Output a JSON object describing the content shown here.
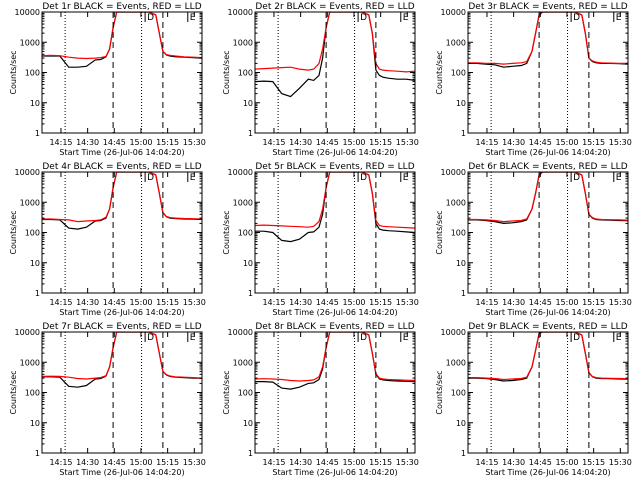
{
  "figure": {
    "xtick_labels": [
      "14:15",
      "14:30",
      "14:45",
      "15:00",
      "15:15",
      "15:30"
    ],
    "xlabel": "Start Time (26-Jul-06 14:04:20)",
    "ylabel": "Counts/sec",
    "ytick_labels": [
      "1",
      "10",
      "100",
      "1000",
      "10000"
    ],
    "marker_labels": [
      "D",
      "E"
    ],
    "colors": {
      "events": "#000000",
      "lld": "#ff0000"
    }
  },
  "chart_data": [
    {
      "type": "line",
      "title": "Det 1r  BLACK = Events, RED = LLD",
      "xlabel": "Start Time (26-Jul-06 14:04:20)",
      "ylabel": "Counts/sec",
      "ylim": [
        1,
        10000
      ],
      "yscale": "log",
      "x_unit": "minutes after 14:04:20",
      "x": [
        0,
        5,
        10,
        15,
        20,
        25,
        30,
        33,
        36,
        38,
        40,
        42,
        44,
        45,
        48,
        51,
        54,
        57,
        60,
        62,
        64,
        66,
        68,
        70,
        72,
        75,
        80,
        85,
        90
      ],
      "series": [
        {
          "name": "Events",
          "values": [
            350,
            350,
            350,
            150,
            150,
            160,
            260,
            270,
            330,
            600,
            3000,
            10000,
            10000,
            10000,
            10000,
            10000,
            10000,
            10000,
            10000,
            9000,
            8000,
            2000,
            500,
            380,
            350,
            330,
            320,
            310,
            300
          ]
        },
        {
          "name": "LLD",
          "values": [
            360,
            370,
            360,
            320,
            300,
            290,
            300,
            310,
            340,
            600,
            3000,
            10000,
            10000,
            10000,
            10000,
            10000,
            10000,
            10000,
            10000,
            9000,
            8000,
            2000,
            500,
            390,
            370,
            350,
            330,
            320,
            310
          ]
        }
      ]
    },
    {
      "type": "line",
      "title": "Det 2r  BLACK = Events, RED = LLD",
      "xlabel": "Start Time (26-Jul-06 14:04:20)",
      "ylabel": "Counts/sec",
      "ylim": [
        1,
        10000
      ],
      "yscale": "log",
      "x": [
        0,
        5,
        10,
        15,
        20,
        25,
        30,
        33,
        36,
        38,
        40,
        42,
        44,
        45,
        48,
        51,
        54,
        57,
        60,
        62,
        64,
        66,
        68,
        70,
        72,
        75,
        80,
        85,
        90
      ],
      "series": [
        {
          "name": "Events",
          "values": [
            50,
            52,
            50,
            20,
            16,
            30,
            60,
            55,
            80,
            300,
            3000,
            10000,
            10000,
            10000,
            10000,
            10000,
            10000,
            10000,
            10000,
            9000,
            8000,
            2000,
            120,
            80,
            70,
            65,
            60,
            60,
            55
          ]
        },
        {
          "name": "LLD",
          "values": [
            130,
            135,
            140,
            145,
            150,
            130,
            120,
            130,
            200,
            600,
            3000,
            10000,
            10000,
            10000,
            10000,
            10000,
            10000,
            10000,
            10000,
            9000,
            8000,
            2000,
            200,
            130,
            120,
            115,
            110,
            105,
            110
          ]
        }
      ]
    },
    {
      "type": "line",
      "title": "Det 3r  BLACK = Events, RED = LLD",
      "xlabel": "Start Time (26-Jul-06 14:04:20)",
      "ylabel": "Counts/sec",
      "ylim": [
        1,
        10000
      ],
      "yscale": "log",
      "x": [
        0,
        5,
        10,
        15,
        20,
        25,
        30,
        33,
        36,
        38,
        40,
        42,
        44,
        45,
        48,
        51,
        54,
        57,
        60,
        62,
        64,
        66,
        68,
        70,
        72,
        75,
        80,
        85,
        90
      ],
      "series": [
        {
          "name": "Events",
          "values": [
            200,
            200,
            190,
            180,
            150,
            160,
            170,
            200,
            500,
            2000,
            8000,
            10000,
            10000,
            10000,
            10000,
            10000,
            10000,
            10000,
            10000,
            9000,
            8000,
            2000,
            300,
            230,
            210,
            200,
            200,
            195,
            190
          ]
        },
        {
          "name": "LLD",
          "values": [
            210,
            210,
            200,
            200,
            190,
            200,
            210,
            230,
            500,
            2000,
            8000,
            10000,
            10000,
            10000,
            10000,
            10000,
            10000,
            10000,
            10000,
            9000,
            8000,
            2000,
            300,
            240,
            220,
            210,
            205,
            200,
            200
          ]
        }
      ]
    },
    {
      "type": "line",
      "title": "Det 4r  BLACK = Events, RED = LLD",
      "xlabel": "Start Time (26-Jul-06 14:04:20)",
      "ylabel": "Counts/sec",
      "ylim": [
        1,
        10000
      ],
      "yscale": "log",
      "x": [
        0,
        5,
        10,
        15,
        20,
        25,
        30,
        33,
        36,
        38,
        40,
        42,
        44,
        45,
        48,
        51,
        54,
        57,
        60,
        62,
        64,
        66,
        68,
        70,
        72,
        75,
        80,
        85,
        90
      ],
      "series": [
        {
          "name": "Events",
          "values": [
            270,
            270,
            260,
            140,
            130,
            150,
            240,
            250,
            300,
            600,
            3000,
            10000,
            10000,
            10000,
            10000,
            10000,
            10000,
            10000,
            10000,
            9000,
            8000,
            2000,
            450,
            330,
            300,
            290,
            280,
            275,
            270
          ]
        },
        {
          "name": "LLD",
          "values": [
            280,
            280,
            270,
            260,
            230,
            240,
            250,
            260,
            320,
            600,
            3000,
            10000,
            10000,
            10000,
            10000,
            10000,
            10000,
            10000,
            10000,
            9000,
            8000,
            2000,
            450,
            340,
            310,
            300,
            290,
            285,
            280
          ]
        }
      ]
    },
    {
      "type": "line",
      "title": "Det 5r  BLACK = Events, RED = LLD",
      "xlabel": "Start Time (26-Jul-06 14:04:20)",
      "ylabel": "Counts/sec",
      "ylim": [
        1,
        10000
      ],
      "yscale": "log",
      "x": [
        0,
        5,
        10,
        15,
        20,
        25,
        30,
        33,
        36,
        38,
        40,
        42,
        44,
        45,
        48,
        51,
        54,
        57,
        60,
        62,
        64,
        66,
        68,
        70,
        72,
        75,
        80,
        85,
        90
      ],
      "series": [
        {
          "name": "Events",
          "values": [
            110,
            110,
            100,
            55,
            50,
            60,
            100,
            105,
            150,
            400,
            3000,
            10000,
            10000,
            10000,
            10000,
            10000,
            10000,
            10000,
            10000,
            9000,
            8000,
            2000,
            200,
            130,
            120,
            115,
            110,
            105,
            100
          ]
        },
        {
          "name": "LLD",
          "values": [
            170,
            175,
            170,
            165,
            160,
            155,
            150,
            160,
            230,
            600,
            3000,
            10000,
            10000,
            10000,
            10000,
            10000,
            10000,
            10000,
            10000,
            9000,
            8000,
            2000,
            250,
            170,
            160,
            155,
            150,
            145,
            140
          ]
        }
      ]
    },
    {
      "type": "line",
      "title": "Det 6r  BLACK = Events, RED = LLD",
      "xlabel": "Start Time (26-Jul-06 14:04:20)",
      "ylabel": "Counts/sec",
      "ylim": [
        1,
        10000
      ],
      "yscale": "log",
      "x": [
        0,
        5,
        10,
        15,
        20,
        25,
        30,
        33,
        36,
        38,
        40,
        42,
        44,
        45,
        48,
        51,
        54,
        57,
        60,
        62,
        64,
        66,
        68,
        70,
        72,
        75,
        80,
        85,
        90
      ],
      "series": [
        {
          "name": "Events",
          "values": [
            260,
            260,
            250,
            230,
            200,
            210,
            230,
            260,
            600,
            2000,
            8000,
            10000,
            10000,
            10000,
            10000,
            10000,
            10000,
            10000,
            10000,
            9000,
            8000,
            2000,
            400,
            300,
            270,
            260,
            255,
            250,
            245
          ]
        },
        {
          "name": "LLD",
          "values": [
            270,
            270,
            260,
            250,
            230,
            240,
            250,
            280,
            600,
            2000,
            8000,
            10000,
            10000,
            10000,
            10000,
            10000,
            10000,
            10000,
            10000,
            9000,
            8000,
            2000,
            400,
            310,
            280,
            270,
            265,
            260,
            255
          ]
        }
      ]
    },
    {
      "type": "line",
      "title": "Det 7r  BLACK = Events, RED = LLD",
      "xlabel": "Start Time (26-Jul-06 14:04:20)",
      "ylabel": "Counts/sec",
      "ylim": [
        1,
        10000
      ],
      "yscale": "log",
      "x": [
        0,
        5,
        10,
        15,
        20,
        25,
        30,
        33,
        36,
        38,
        40,
        42,
        44,
        45,
        48,
        51,
        54,
        57,
        60,
        62,
        64,
        66,
        68,
        70,
        72,
        75,
        80,
        85,
        90
      ],
      "series": [
        {
          "name": "Events",
          "values": [
            330,
            330,
            320,
            160,
            150,
            170,
            280,
            290,
            350,
            700,
            3000,
            10000,
            10000,
            10000,
            10000,
            10000,
            10000,
            10000,
            10000,
            9000,
            8000,
            2000,
            500,
            380,
            340,
            320,
            310,
            300,
            295
          ]
        },
        {
          "name": "LLD",
          "values": [
            340,
            345,
            340,
            320,
            290,
            280,
            300,
            310,
            360,
            700,
            3000,
            10000,
            10000,
            10000,
            10000,
            10000,
            10000,
            10000,
            10000,
            9000,
            8000,
            2000,
            500,
            390,
            350,
            330,
            320,
            310,
            300
          ]
        }
      ]
    },
    {
      "type": "line",
      "title": "Det 8r  BLACK = Events, RED = LLD",
      "xlabel": "Start Time (26-Jul-06 14:04:20)",
      "ylabel": "Counts/sec",
      "ylim": [
        1,
        10000
      ],
      "yscale": "log",
      "x": [
        0,
        5,
        10,
        15,
        20,
        25,
        30,
        33,
        36,
        38,
        40,
        42,
        44,
        45,
        48,
        51,
        54,
        57,
        60,
        62,
        64,
        66,
        68,
        70,
        72,
        75,
        80,
        85,
        90
      ],
      "series": [
        {
          "name": "Events",
          "values": [
            230,
            230,
            220,
            140,
            130,
            150,
            200,
            210,
            270,
            600,
            3000,
            10000,
            10000,
            10000,
            10000,
            10000,
            10000,
            10000,
            10000,
            9000,
            8000,
            2000,
            400,
            280,
            260,
            250,
            240,
            235,
            230
          ]
        },
        {
          "name": "LLD",
          "values": [
            280,
            285,
            280,
            270,
            250,
            240,
            250,
            260,
            330,
            700,
            3000,
            10000,
            10000,
            10000,
            10000,
            10000,
            10000,
            10000,
            10000,
            9000,
            8000,
            2000,
            420,
            300,
            280,
            270,
            260,
            255,
            250
          ]
        }
      ]
    },
    {
      "type": "line",
      "title": "Det 9r  BLACK = Events, RED = LLD",
      "xlabel": "Start Time (26-Jul-06 14:04:20)",
      "ylabel": "Counts/sec",
      "ylim": [
        1,
        10000
      ],
      "yscale": "log",
      "x": [
        0,
        5,
        10,
        15,
        20,
        25,
        30,
        33,
        36,
        38,
        40,
        42,
        44,
        45,
        48,
        51,
        54,
        57,
        60,
        62,
        64,
        66,
        68,
        70,
        72,
        75,
        80,
        85,
        90
      ],
      "series": [
        {
          "name": "Events",
          "values": [
            300,
            300,
            290,
            270,
            240,
            250,
            270,
            300,
            700,
            2500,
            9000,
            10000,
            10000,
            10000,
            10000,
            10000,
            10000,
            10000,
            10000,
            9000,
            8000,
            2000,
            450,
            330,
            300,
            290,
            285,
            280,
            275
          ]
        },
        {
          "name": "LLD",
          "values": [
            310,
            310,
            300,
            290,
            270,
            280,
            290,
            320,
            700,
            2500,
            9000,
            10000,
            10000,
            10000,
            10000,
            10000,
            10000,
            10000,
            10000,
            9000,
            8000,
            2000,
            450,
            340,
            310,
            300,
            295,
            290,
            285
          ]
        }
      ]
    }
  ]
}
